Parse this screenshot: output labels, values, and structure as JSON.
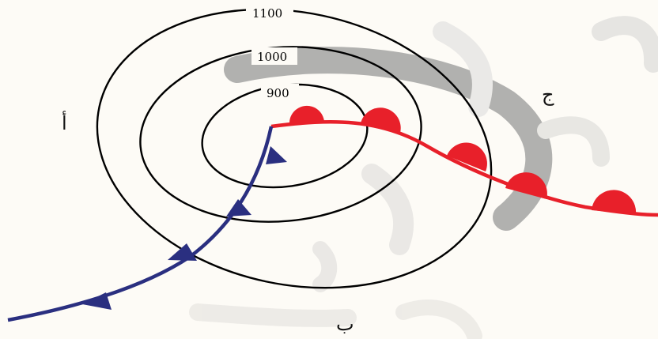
{
  "isobars": [
    {
      "label": "1100"
    },
    {
      "label": "1000"
    },
    {
      "label": "900"
    }
  ],
  "regions": {
    "a": "أ",
    "b": "ب",
    "c": "ج"
  },
  "fronts": {
    "cold": {
      "color": "#2a2f80"
    },
    "warm": {
      "color": "#e8202a"
    }
  },
  "colors": {
    "background": "#fdfbf6",
    "isobar": "#000000",
    "watermark": "#8a8a8a"
  }
}
